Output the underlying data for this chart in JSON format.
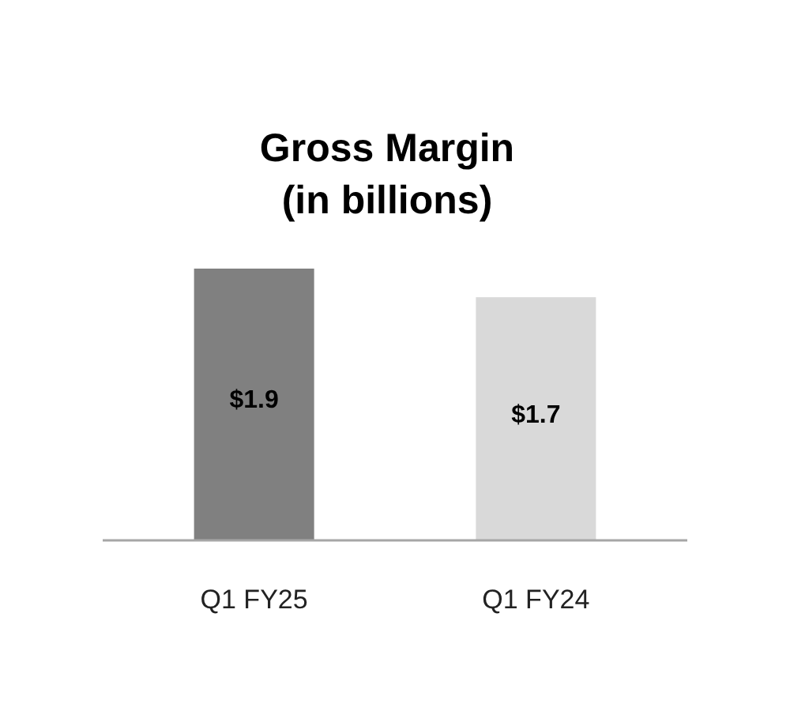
{
  "chart_data": {
    "type": "bar",
    "title": "Gross Margin",
    "subtitle": "(in billions)",
    "categories": [
      "Q1 FY25",
      "Q1 FY24"
    ],
    "values": [
      1.9,
      1.7
    ],
    "colors": [
      "#808080",
      "#d9d9d9"
    ],
    "value_labels": [
      "$1.9",
      "$1.7"
    ]
  }
}
